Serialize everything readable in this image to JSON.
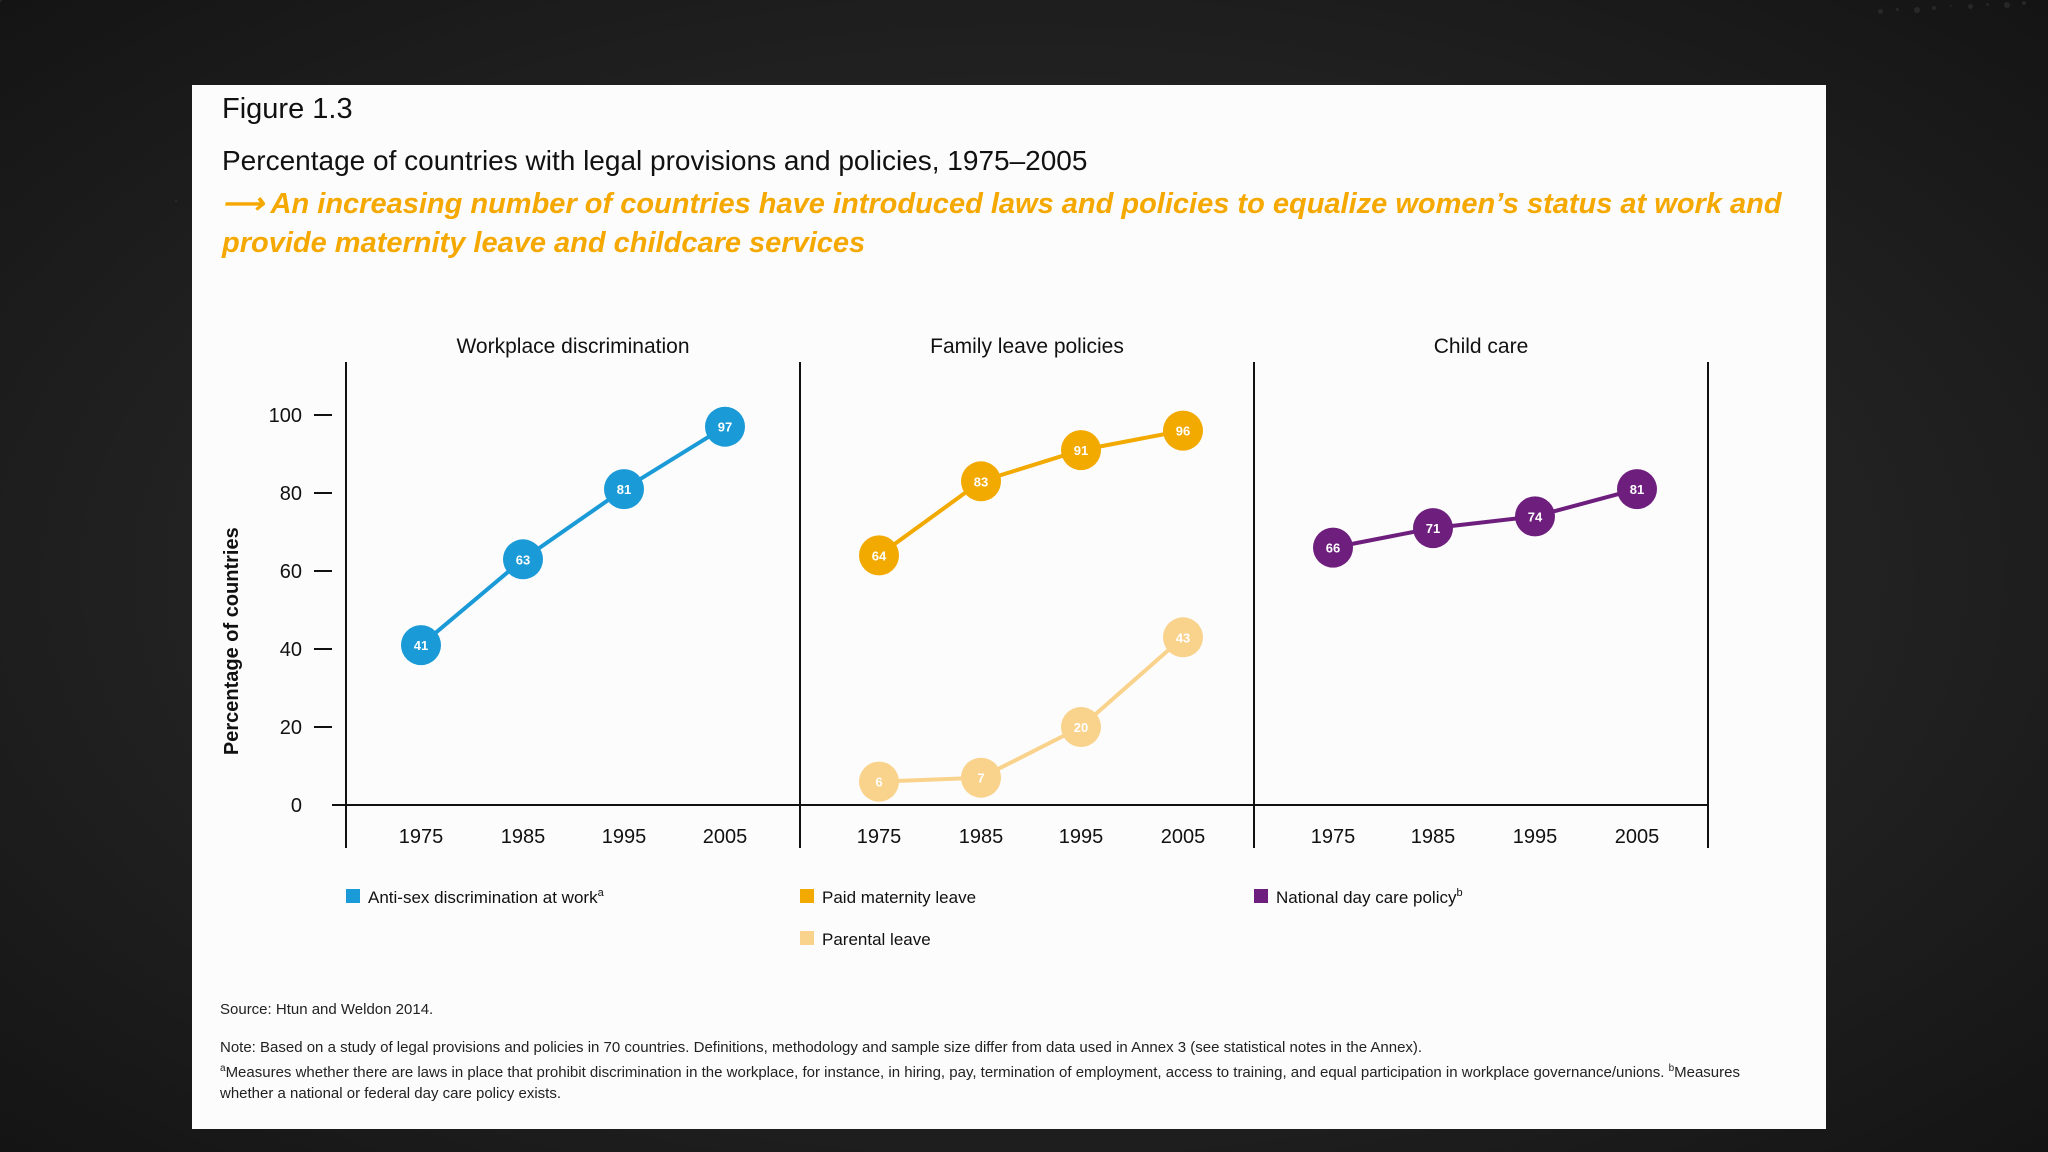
{
  "figure_label": "Figure 1.3",
  "title": "Percentage of countries with legal provisions and policies, 1975–2005",
  "subtitle": "⟶ An increasing number of countries have introduced laws and policies to equalize women’s status at work and provide maternity leave and childcare services",
  "chart_data": {
    "type": "line",
    "ylabel": "Percentage of countries",
    "yticks": [
      0,
      20,
      40,
      60,
      80,
      100
    ],
    "ylim": [
      0,
      110
    ],
    "x": [
      "1975",
      "1985",
      "1995",
      "2005"
    ],
    "grid": false,
    "panels": [
      {
        "title": "Workplace discrimination",
        "series": [
          {
            "name": "Anti-sex discrimination at work",
            "superscript": "a",
            "color": "#1a9ad6",
            "values": [
              41,
              63,
              81,
              97
            ]
          }
        ]
      },
      {
        "title": "Family leave policies",
        "series": [
          {
            "name": "Paid maternity leave",
            "superscript": "",
            "color": "#f2a900",
            "values": [
              64,
              83,
              91,
              96
            ]
          },
          {
            "name": "Parental leave",
            "superscript": "",
            "color": "#f9d28c",
            "values": [
              6,
              7,
              20,
              43
            ]
          }
        ]
      },
      {
        "title": "Child care",
        "series": [
          {
            "name": "National day care policy",
            "superscript": "b",
            "color": "#6e1f7e",
            "values": [
              66,
              71,
              74,
              81
            ]
          }
        ]
      }
    ]
  },
  "source": "Source: Htun and Weldon 2014.",
  "note_line1": "Note: Based on a study of legal provisions and policies in 70 countries. Definitions, methodology and sample size differ from data used in Annex 3 (see statistical notes in the Annex).",
  "note_a": "Measures whether there are laws in place that prohibit discrimination in the workplace, for instance, in hiring, pay, termination of employment, access to training, and equal participation in workplace governance/unions.",
  "note_b": "Measures whether a national or federal day care policy exists."
}
